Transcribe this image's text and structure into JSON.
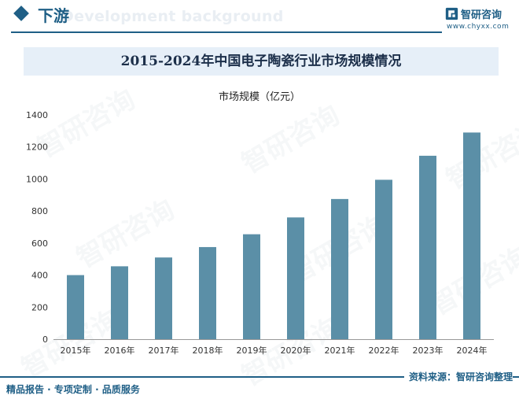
{
  "header": {
    "section_title": "下游",
    "ghost_text": "Development background",
    "brand_name": "智研咨询",
    "brand_url": "www.chyxx.com"
  },
  "chart_data": {
    "type": "bar",
    "title": "2015-2024年中国电子陶瓷行业市场规模情况",
    "series_name": "市场规模（亿元）",
    "categories": [
      "2015年",
      "2016年",
      "2017年",
      "2018年",
      "2019年",
      "2020年",
      "2021年",
      "2022年",
      "2023年",
      "2024年"
    ],
    "values": [
      400,
      455,
      510,
      575,
      655,
      760,
      875,
      995,
      1145,
      1290
    ],
    "ylim": [
      0,
      1400
    ],
    "yticks": [
      0,
      200,
      400,
      600,
      800,
      1000,
      1200,
      1400
    ],
    "bar_color": "#5b8fa7",
    "grid": false
  },
  "footer": {
    "left": "精品报告 · 专项定制 · 品质服务",
    "right": "资料来源：智研咨询整理"
  },
  "watermark": "智研咨询",
  "colors": {
    "brand": "#1f5f86",
    "title_band": "#e6eff8"
  }
}
